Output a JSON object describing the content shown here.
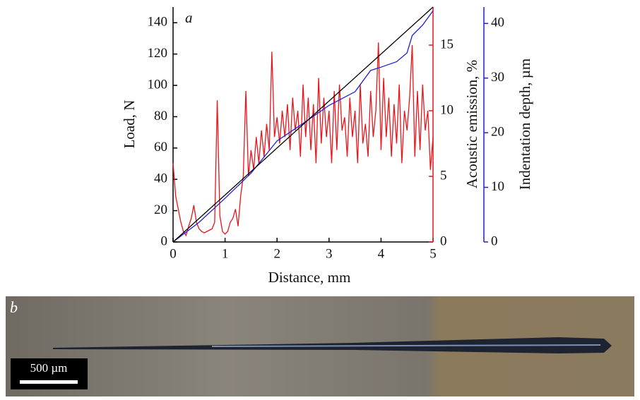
{
  "chart_data": {
    "type": "line",
    "annotation": "a",
    "xlabel": "Distance, mm",
    "ylabel": "Load, N",
    "y2label": "Acoustic emission, %",
    "y3label": "Indentation depth, µm",
    "xlim": [
      0,
      5
    ],
    "xticks": [
      0,
      1,
      2,
      3,
      4,
      5
    ],
    "ylim": [
      0,
      150
    ],
    "yticks": [
      0,
      20,
      40,
      60,
      80,
      100,
      120,
      140
    ],
    "y2lim": [
      0,
      17.9
    ],
    "y2ticks": [
      0,
      5,
      10,
      15
    ],
    "y3lim": [
      0,
      43
    ],
    "y3ticks": [
      0,
      10,
      20,
      30,
      40
    ],
    "series": [
      {
        "axis": "y2",
        "color": "#e8151b",
        "x": [
          0,
          0.05,
          0.1,
          0.15,
          0.2,
          0.25,
          0.3,
          0.35,
          0.4,
          0.45,
          0.5,
          0.55,
          0.6,
          0.65,
          0.7,
          0.75,
          0.8,
          0.85,
          0.9,
          0.95,
          1,
          1.05,
          1.1,
          1.15,
          1.2,
          1.25,
          1.3,
          1.35,
          1.4,
          1.45,
          1.5,
          1.55,
          1.6,
          1.65,
          1.7,
          1.75,
          1.8,
          1.85,
          1.9,
          1.95,
          2,
          2.05,
          2.1,
          2.15,
          2.2,
          2.25,
          2.3,
          2.35,
          2.4,
          2.45,
          2.5,
          2.55,
          2.6,
          2.65,
          2.7,
          2.75,
          2.8,
          2.85,
          2.9,
          2.95,
          3,
          3.05,
          3.1,
          3.15,
          3.2,
          3.25,
          3.3,
          3.35,
          3.4,
          3.45,
          3.5,
          3.55,
          3.6,
          3.65,
          3.7,
          3.75,
          3.8,
          3.85,
          3.9,
          3.95,
          4,
          4.05,
          4.1,
          4.15,
          4.2,
          4.25,
          4.3,
          4.35,
          4.4,
          4.45,
          4.5,
          4.55,
          4.6,
          4.65,
          4.7,
          4.75,
          4.8,
          4.85,
          4.9,
          4.95,
          5
        ],
        "values": [
          6,
          3.5,
          2.5,
          1.5,
          0.8,
          0.5,
          1.2,
          1.8,
          2.8,
          1.5,
          1,
          0.8,
          0.7,
          0.8,
          0.9,
          1.0,
          1.5,
          10.8,
          2,
          0.8,
          0.6,
          0.8,
          1.5,
          1.8,
          2.5,
          1.2,
          3.5,
          5,
          11.5,
          5,
          7,
          5.5,
          8,
          6,
          8.5,
          6.5,
          9,
          7,
          14.5,
          8,
          9.5,
          7.5,
          10,
          8,
          10.5,
          7,
          11,
          8.5,
          10,
          6.5,
          12,
          8,
          11,
          7,
          10.5,
          6,
          12.5,
          7.5,
          11,
          8,
          10,
          6,
          11.5,
          7,
          12,
          8.5,
          9.5,
          6.5,
          11,
          8,
          10,
          6,
          12,
          7.5,
          9,
          6.5,
          11.5,
          8,
          10,
          15.2,
          7,
          12.5,
          8,
          11,
          6.5,
          10.5,
          7.5,
          12,
          6,
          10,
          8.5,
          11,
          15,
          6.5,
          11.5,
          7,
          12,
          8.5,
          10,
          5.5,
          8
        ]
      },
      {
        "axis": "y3",
        "color": "#1f1fd6",
        "x": [
          0,
          0.5,
          1,
          1.5,
          2,
          2.5,
          3,
          3.5,
          3.8,
          4,
          4.3,
          4.5,
          4.6,
          4.8,
          5
        ],
        "values": [
          0,
          3.6,
          8,
          12.6,
          18.5,
          21.7,
          25,
          27.5,
          31.4,
          32,
          33,
          34.6,
          37.8,
          39.7,
          42.3
        ]
      },
      {
        "axis": "y",
        "color": "#000000",
        "x": [
          0,
          5
        ],
        "values": [
          0,
          150
        ]
      }
    ]
  },
  "panel_b": {
    "label": "b",
    "scale_bar": "500 µm"
  }
}
